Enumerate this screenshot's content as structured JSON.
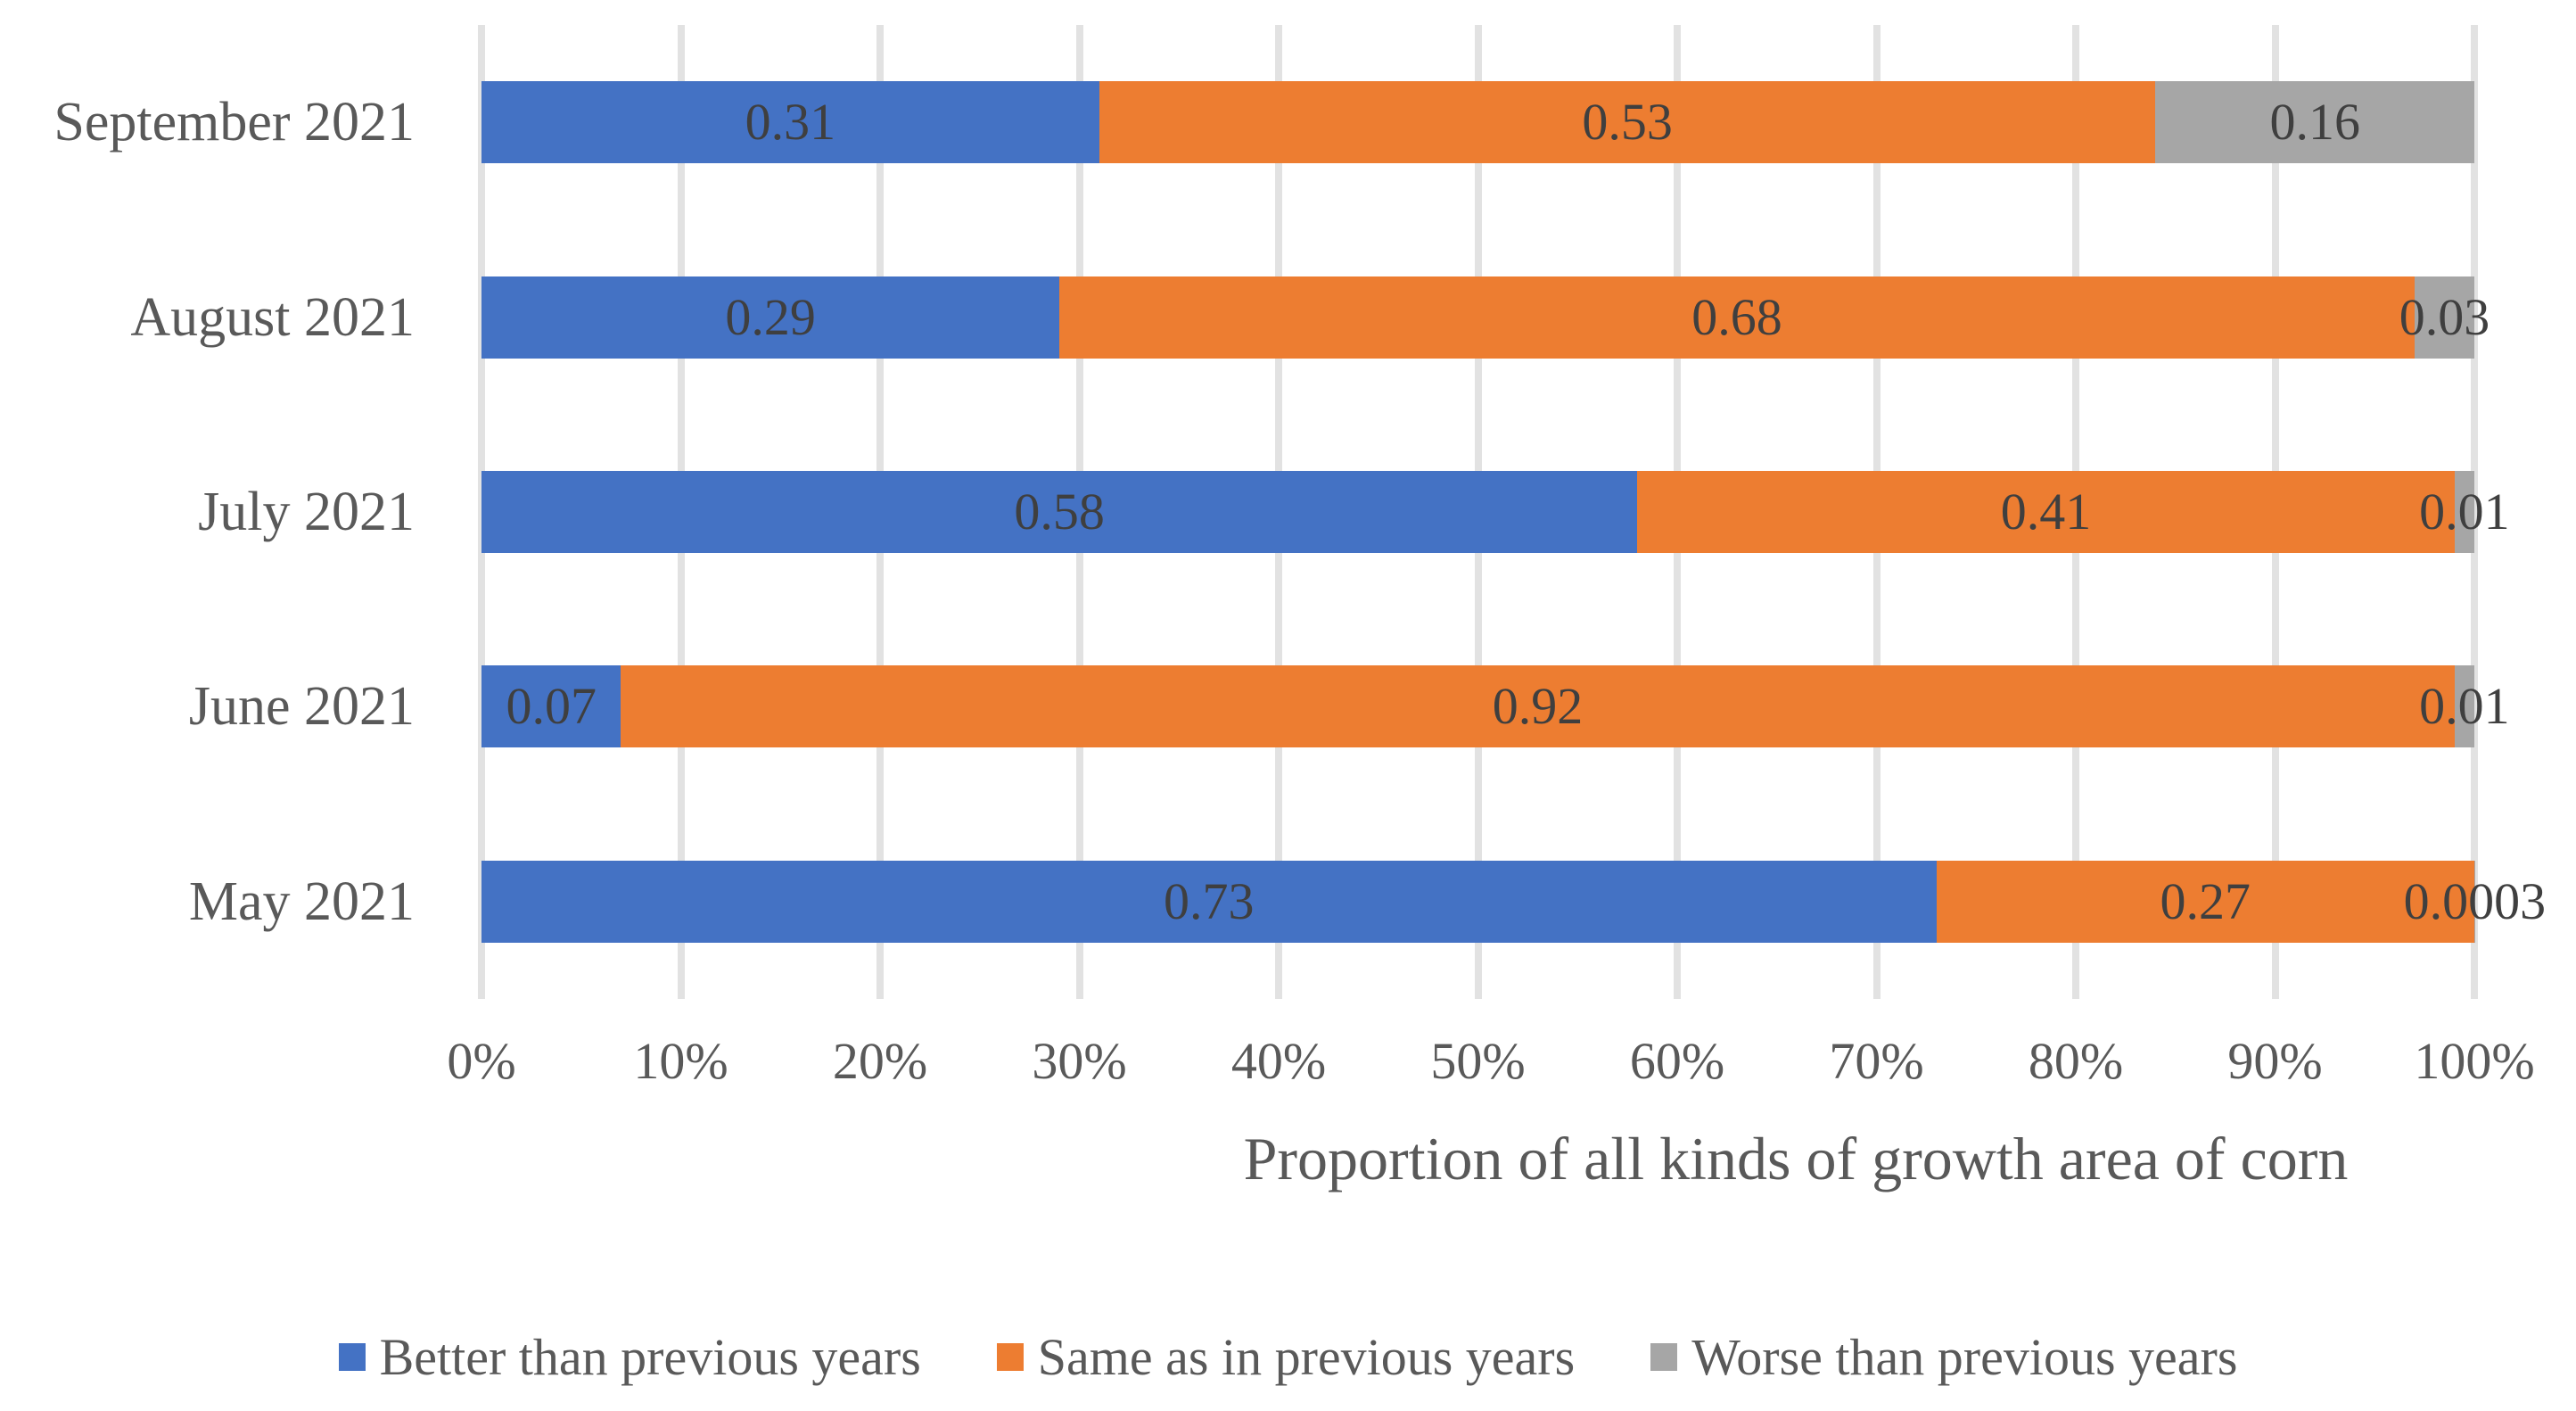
{
  "chart_data": {
    "type": "bar",
    "orientation": "horizontal",
    "stacked": true,
    "title": "",
    "xlabel": "Proportion of all kinds of growth area of corn",
    "ylabel": "",
    "categories": [
      "September 2021",
      "August 2021",
      "July 2021",
      "June 2021",
      "May 2021"
    ],
    "series": [
      {
        "name": "Better than previous years",
        "color": "#4472C4",
        "values": [
          0.31,
          0.29,
          0.58,
          0.07,
          0.73
        ],
        "labels": [
          "0.31",
          "0.29",
          "0.58",
          "0.07",
          "0.73"
        ]
      },
      {
        "name": "Same as in previous years",
        "color": "#ED7D31",
        "values": [
          0.53,
          0.68,
          0.41,
          0.92,
          0.27
        ],
        "labels": [
          "0.53",
          "0.68",
          "0.41",
          "0.92",
          "0.27"
        ]
      },
      {
        "name": "Worse than previous years",
        "color": "#A6A6A6",
        "values": [
          0.16,
          0.03,
          0.01,
          0.01,
          0.0003
        ],
        "labels": [
          "0.16",
          "0.03",
          "0.01",
          "0.01",
          "0.0003"
        ]
      }
    ],
    "x_ticks": [
      "0%",
      "10%",
      "20%",
      "30%",
      "40%",
      "50%",
      "60%",
      "70%",
      "80%",
      "90%",
      "100%"
    ],
    "xlim": [
      0,
      1
    ],
    "grid": true,
    "gridline_color": "#E2E2E2",
    "legend_position": "bottom",
    "text_color": "#595959",
    "data_label_color": "#3F3F3F"
  }
}
